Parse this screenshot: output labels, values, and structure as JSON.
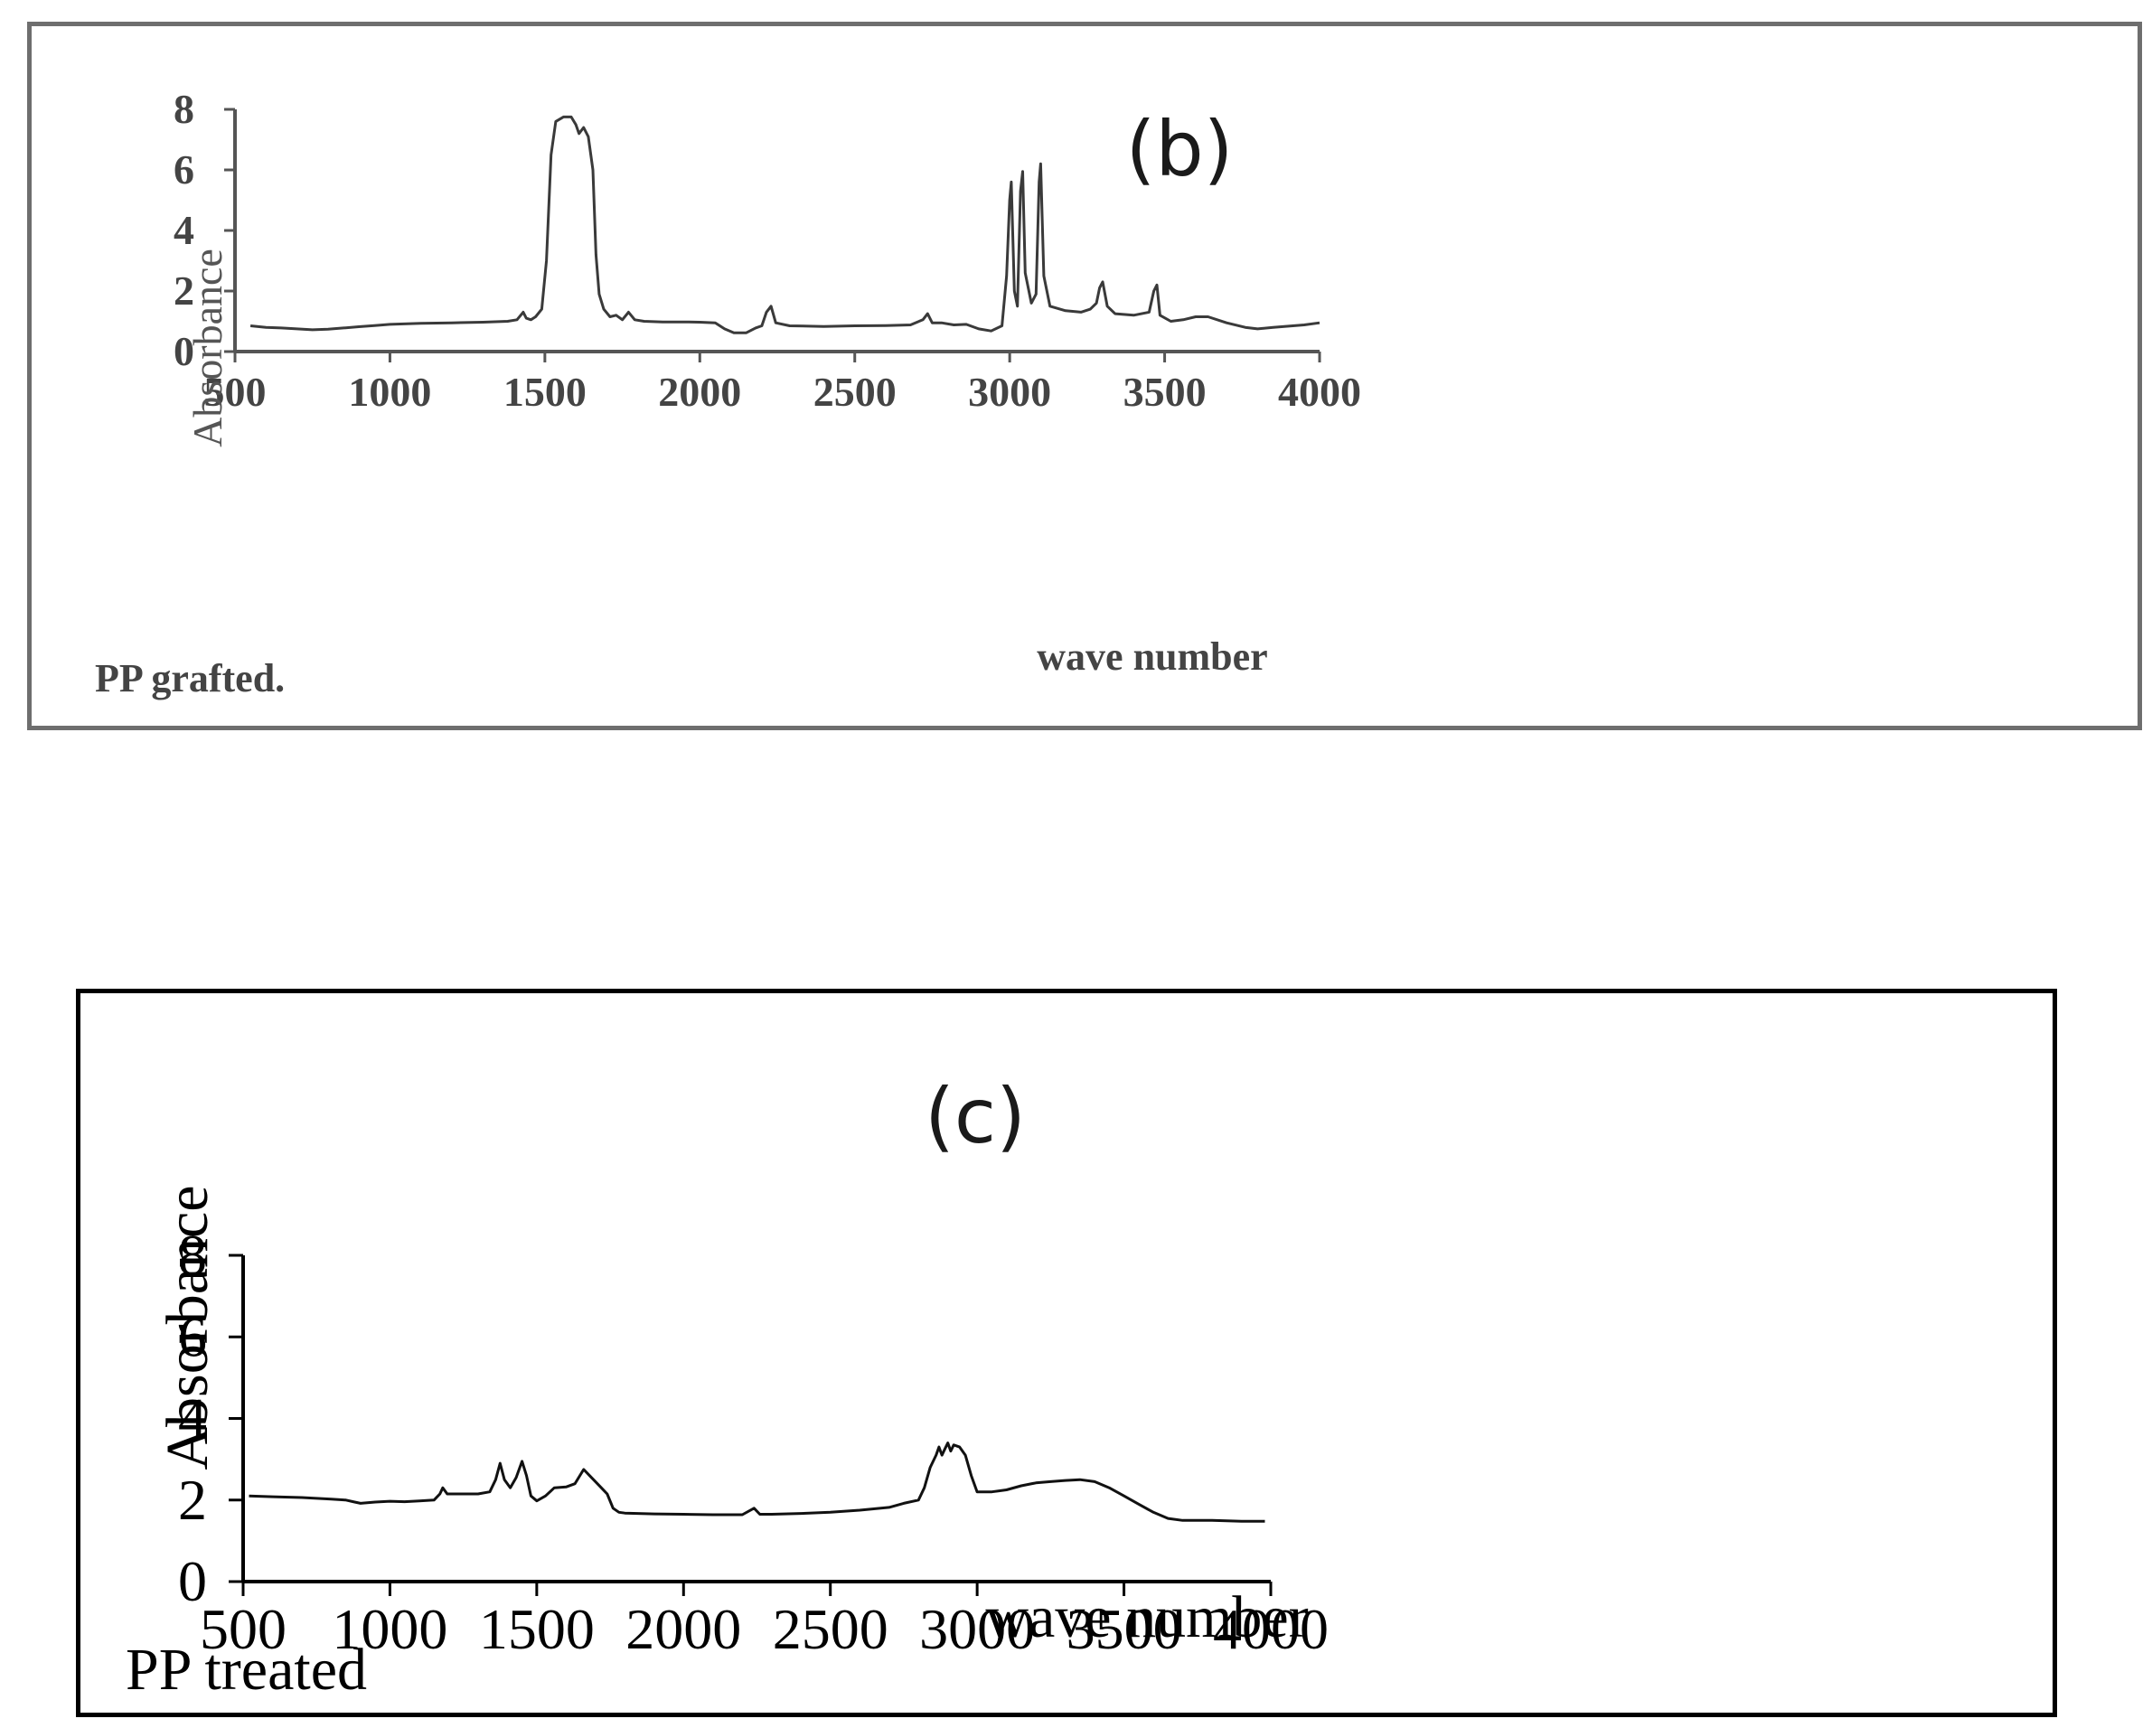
{
  "chart_data": [
    {
      "type": "line",
      "panel_label": "(b)",
      "caption": "PP grafted.",
      "xlabel": "wave number",
      "ylabel": "Absorbance",
      "xlim": [
        500,
        4000
      ],
      "ylim": [
        0,
        8
      ],
      "xticks": [
        500,
        1000,
        1500,
        2000,
        2500,
        3000,
        3500,
        4000
      ],
      "yticks": [
        0,
        2,
        4,
        6,
        8
      ],
      "grid": false,
      "line_color": "#3a3a3a",
      "series": [
        {
          "points": [
            [
              550,
              0.85
            ],
            [
              600,
              0.8
            ],
            [
              650,
              0.78
            ],
            [
              700,
              0.75
            ],
            [
              750,
              0.72
            ],
            [
              800,
              0.74
            ],
            [
              850,
              0.78
            ],
            [
              900,
              0.82
            ],
            [
              950,
              0.86
            ],
            [
              1000,
              0.9
            ],
            [
              1100,
              0.93
            ],
            [
              1200,
              0.95
            ],
            [
              1300,
              0.97
            ],
            [
              1380,
              1.0
            ],
            [
              1410,
              1.05
            ],
            [
              1430,
              1.3
            ],
            [
              1440,
              1.1
            ],
            [
              1455,
              1.05
            ],
            [
              1470,
              1.15
            ],
            [
              1490,
              1.4
            ],
            [
              1505,
              3.0
            ],
            [
              1520,
              6.5
            ],
            [
              1535,
              7.6
            ],
            [
              1560,
              7.75
            ],
            [
              1585,
              7.75
            ],
            [
              1600,
              7.5
            ],
            [
              1610,
              7.2
            ],
            [
              1625,
              7.4
            ],
            [
              1640,
              7.1
            ],
            [
              1655,
              6.0
            ],
            [
              1665,
              3.2
            ],
            [
              1675,
              1.9
            ],
            [
              1690,
              1.4
            ],
            [
              1710,
              1.15
            ],
            [
              1730,
              1.2
            ],
            [
              1750,
              1.05
            ],
            [
              1770,
              1.3
            ],
            [
              1790,
              1.05
            ],
            [
              1820,
              1.0
            ],
            [
              1880,
              0.98
            ],
            [
              1950,
              0.98
            ],
            [
              2000,
              0.97
            ],
            [
              2050,
              0.95
            ],
            [
              2080,
              0.75
            ],
            [
              2110,
              0.62
            ],
            [
              2150,
              0.62
            ],
            [
              2180,
              0.78
            ],
            [
              2200,
              0.85
            ],
            [
              2215,
              1.3
            ],
            [
              2230,
              1.5
            ],
            [
              2245,
              0.95
            ],
            [
              2290,
              0.85
            ],
            [
              2400,
              0.83
            ],
            [
              2500,
              0.85
            ],
            [
              2600,
              0.86
            ],
            [
              2680,
              0.88
            ],
            [
              2720,
              1.05
            ],
            [
              2735,
              1.25
            ],
            [
              2750,
              0.95
            ],
            [
              2780,
              0.95
            ],
            [
              2820,
              0.88
            ],
            [
              2860,
              0.9
            ],
            [
              2900,
              0.75
            ],
            [
              2940,
              0.68
            ],
            [
              2975,
              0.85
            ],
            [
              2990,
              2.5
            ],
            [
              3000,
              5.0
            ],
            [
              3005,
              5.6
            ],
            [
              3015,
              2.0
            ],
            [
              3025,
              1.5
            ],
            [
              3035,
              5.3
            ],
            [
              3042,
              5.95
            ],
            [
              3050,
              2.6
            ],
            [
              3070,
              1.6
            ],
            [
              3085,
              1.9
            ],
            [
              3095,
              5.6
            ],
            [
              3100,
              6.2
            ],
            [
              3110,
              2.5
            ],
            [
              3130,
              1.5
            ],
            [
              3180,
              1.35
            ],
            [
              3230,
              1.3
            ],
            [
              3260,
              1.4
            ],
            [
              3280,
              1.6
            ],
            [
              3290,
              2.1
            ],
            [
              3300,
              2.3
            ],
            [
              3315,
              1.5
            ],
            [
              3340,
              1.25
            ],
            [
              3400,
              1.2
            ],
            [
              3450,
              1.3
            ],
            [
              3465,
              2.0
            ],
            [
              3475,
              2.2
            ],
            [
              3485,
              1.2
            ],
            [
              3520,
              1.0
            ],
            [
              3560,
              1.05
            ],
            [
              3600,
              1.15
            ],
            [
              3640,
              1.15
            ],
            [
              3700,
              0.95
            ],
            [
              3760,
              0.8
            ],
            [
              3800,
              0.75
            ],
            [
              3850,
              0.8
            ],
            [
              3950,
              0.88
            ],
            [
              4000,
              0.95
            ]
          ]
        }
      ]
    },
    {
      "type": "line",
      "panel_label": "(c)",
      "caption": "PP treated",
      "xlabel": "wave number",
      "ylabel": "Absorbance",
      "xlim": [
        500,
        4000
      ],
      "ylim": [
        0,
        8
      ],
      "xticks": [
        500,
        1000,
        1500,
        2000,
        2500,
        3000,
        3500,
        4000
      ],
      "yticks": [
        0,
        2,
        4,
        6,
        8
      ],
      "grid": false,
      "line_color": "#111111",
      "series": [
        {
          "points": [
            [
              520,
              2.1
            ],
            [
              600,
              2.08
            ],
            [
              700,
              2.06
            ],
            [
              800,
              2.02
            ],
            [
              850,
              2.0
            ],
            [
              880,
              1.95
            ],
            [
              900,
              1.92
            ],
            [
              950,
              1.95
            ],
            [
              1000,
              1.97
            ],
            [
              1050,
              1.96
            ],
            [
              1100,
              1.98
            ],
            [
              1150,
              2.0
            ],
            [
              1170,
              2.15
            ],
            [
              1180,
              2.3
            ],
            [
              1195,
              2.15
            ],
            [
              1250,
              2.15
            ],
            [
              1300,
              2.15
            ],
            [
              1340,
              2.2
            ],
            [
              1360,
              2.5
            ],
            [
              1375,
              2.9
            ],
            [
              1390,
              2.5
            ],
            [
              1410,
              2.3
            ],
            [
              1430,
              2.55
            ],
            [
              1450,
              2.95
            ],
            [
              1465,
              2.6
            ],
            [
              1480,
              2.1
            ],
            [
              1500,
              1.98
            ],
            [
              1530,
              2.1
            ],
            [
              1560,
              2.3
            ],
            [
              1600,
              2.32
            ],
            [
              1630,
              2.4
            ],
            [
              1660,
              2.75
            ],
            [
              1680,
              2.6
            ],
            [
              1700,
              2.45
            ],
            [
              1720,
              2.3
            ],
            [
              1740,
              2.15
            ],
            [
              1760,
              1.8
            ],
            [
              1780,
              1.7
            ],
            [
              1800,
              1.68
            ],
            [
              1900,
              1.66
            ],
            [
              2000,
              1.65
            ],
            [
              2100,
              1.64
            ],
            [
              2200,
              1.64
            ],
            [
              2240,
              1.8
            ],
            [
              2260,
              1.65
            ],
            [
              2300,
              1.65
            ],
            [
              2400,
              1.67
            ],
            [
              2500,
              1.7
            ],
            [
              2600,
              1.75
            ],
            [
              2700,
              1.82
            ],
            [
              2750,
              1.92
            ],
            [
              2800,
              2.0
            ],
            [
              2820,
              2.3
            ],
            [
              2840,
              2.8
            ],
            [
              2860,
              3.1
            ],
            [
              2870,
              3.3
            ],
            [
              2880,
              3.1
            ],
            [
              2890,
              3.25
            ],
            [
              2900,
              3.4
            ],
            [
              2910,
              3.2
            ],
            [
              2920,
              3.35
            ],
            [
              2940,
              3.3
            ],
            [
              2960,
              3.1
            ],
            [
              2980,
              2.6
            ],
            [
              3000,
              2.2
            ],
            [
              3050,
              2.2
            ],
            [
              3100,
              2.25
            ],
            [
              3150,
              2.35
            ],
            [
              3200,
              2.42
            ],
            [
              3250,
              2.45
            ],
            [
              3300,
              2.48
            ],
            [
              3350,
              2.5
            ],
            [
              3400,
              2.45
            ],
            [
              3450,
              2.3
            ],
            [
              3500,
              2.1
            ],
            [
              3550,
              1.9
            ],
            [
              3600,
              1.7
            ],
            [
              3650,
              1.55
            ],
            [
              3700,
              1.5
            ],
            [
              3800,
              1.5
            ],
            [
              3900,
              1.48
            ],
            [
              3980,
              1.48
            ]
          ]
        }
      ]
    }
  ]
}
